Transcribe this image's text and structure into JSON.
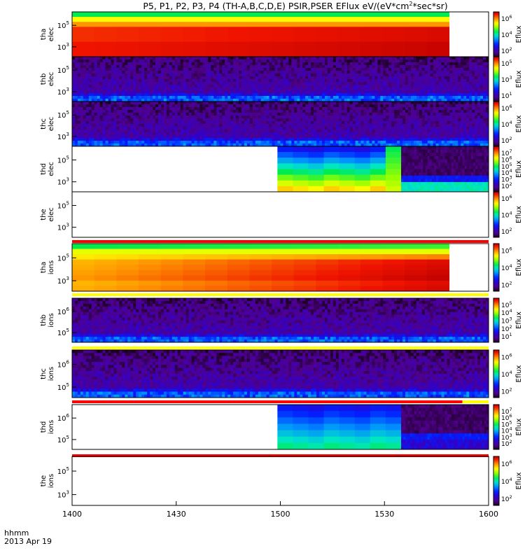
{
  "title": "P5, P1, P2, P3, P4 (TH-A,B,C,D,E) PSIR,PSER EFlux eV/(eV*cm",
  "title_sup": "2",
  "title_tail": "*sec*sr)",
  "xaxis": {
    "ticks": [
      "1400",
      "1430",
      "1500",
      "1530",
      "1600"
    ],
    "corner_label_1": "hhmm",
    "corner_label_2": "2013 Apr 19"
  },
  "colorbar_label": "Eflux",
  "chart_data": [
    {
      "type": "heatmap",
      "panel": "tha elec",
      "ylabel": [
        "tha",
        "elec"
      ],
      "yticks": [
        {
          "base": "10",
          "exp": "5"
        },
        {
          "base": "10",
          "exp": "3"
        }
      ],
      "colorbar_ticks": [
        {
          "base": "10",
          "exp": "6"
        },
        {
          "base": "10",
          "exp": "4"
        },
        {
          "base": "10",
          "exp": "2"
        }
      ],
      "pattern": "hot_columns",
      "coverage": [
        0,
        0.905
      ],
      "bands": [
        0.86,
        0.6,
        0.45,
        0.35,
        0.25
      ]
    },
    {
      "type": "heatmap",
      "panel": "thb elec",
      "ylabel": [
        "thb",
        "elec"
      ],
      "yticks": [
        {
          "base": "10",
          "exp": "5"
        },
        {
          "base": "10",
          "exp": "3"
        }
      ],
      "colorbar_ticks": [
        {
          "base": "10",
          "exp": "5"
        },
        {
          "base": "10",
          "exp": "3"
        },
        {
          "base": "10",
          "exp": "1"
        }
      ],
      "pattern": "noise",
      "coverage": [
        0,
        1
      ],
      "bands": [
        0.18,
        0.34,
        0.46
      ]
    },
    {
      "type": "heatmap",
      "panel": "thc elec",
      "ylabel": [
        "thc",
        "elec"
      ],
      "yticks": [
        {
          "base": "10",
          "exp": "5"
        },
        {
          "base": "10",
          "exp": "3"
        }
      ],
      "colorbar_ticks": [
        {
          "base": "10",
          "exp": "6"
        },
        {
          "base": "10",
          "exp": "4"
        },
        {
          "base": "10",
          "exp": "2"
        }
      ],
      "pattern": "noise",
      "coverage": [
        0,
        1
      ],
      "bands": [
        0.12,
        0.2,
        0.28
      ]
    },
    {
      "type": "heatmap",
      "panel": "thd elec",
      "ylabel": [
        "thd",
        "elec"
      ],
      "yticks": [
        {
          "base": "10",
          "exp": "5"
        },
        {
          "base": "10",
          "exp": "3"
        }
      ],
      "colorbar_ticks": [
        {
          "base": "10",
          "exp": "7"
        },
        {
          "base": "10",
          "exp": "6"
        },
        {
          "base": "10",
          "exp": "5"
        },
        {
          "base": "10",
          "exp": "4"
        },
        {
          "base": "10",
          "exp": "3"
        },
        {
          "base": "10",
          "exp": "2"
        }
      ],
      "pattern": "thd",
      "coverage": [
        0.493,
        1
      ]
    },
    {
      "type": "heatmap",
      "panel": "the elec",
      "ylabel": [
        "the",
        "elec"
      ],
      "yticks": [
        {
          "base": "10",
          "exp": "5"
        },
        {
          "base": "10",
          "exp": "3"
        }
      ],
      "colorbar_ticks": [
        {
          "base": "10",
          "exp": "6"
        },
        {
          "base": "10",
          "exp": "4"
        },
        {
          "base": "10",
          "exp": "2"
        }
      ],
      "pattern": "empty",
      "coverage": [
        0,
        0
      ],
      "status_bar": [
        {
          "from": 0,
          "to": 1,
          "color": "#ff0000"
        }
      ]
    },
    {
      "type": "heatmap",
      "panel": "tha ions",
      "ylabel": [
        "tha",
        "ions"
      ],
      "yticks": [
        {
          "base": "10",
          "exp": "5"
        },
        {
          "base": "10",
          "exp": "3"
        }
      ],
      "colorbar_ticks": [
        {
          "base": "10",
          "exp": "6"
        },
        {
          "base": "10",
          "exp": "4"
        },
        {
          "base": "10",
          "exp": "2"
        }
      ],
      "pattern": "warm_columns",
      "coverage": [
        0,
        0.905
      ],
      "status_bar": [
        {
          "from": 0,
          "to": 1,
          "color": "#ffff00"
        }
      ]
    },
    {
      "type": "heatmap",
      "panel": "thb ions",
      "ylabel": [
        "thb",
        "ions"
      ],
      "yticks": [
        {
          "base": "10",
          "exp": "6"
        },
        {
          "base": "10",
          "exp": "5"
        }
      ],
      "colorbar_ticks": [
        {
          "base": "10",
          "exp": "5"
        },
        {
          "base": "10",
          "exp": "4"
        },
        {
          "base": "10",
          "exp": "3"
        },
        {
          "base": "10",
          "exp": "2"
        },
        {
          "base": "10",
          "exp": "1"
        }
      ],
      "pattern": "noise",
      "coverage": [
        0,
        1
      ],
      "bands": [
        0.1,
        0.25,
        0.45
      ],
      "status_bar": [
        {
          "from": 0,
          "to": 1,
          "color": "#ffff00"
        }
      ]
    },
    {
      "type": "heatmap",
      "panel": "thc ions",
      "ylabel": [
        "thc",
        "ions"
      ],
      "yticks": [
        {
          "base": "10",
          "exp": "6"
        },
        {
          "base": "10",
          "exp": "5"
        }
      ],
      "colorbar_ticks": [
        {
          "base": "10",
          "exp": "6"
        },
        {
          "base": "10",
          "exp": "4"
        },
        {
          "base": "10",
          "exp": "2"
        }
      ],
      "pattern": "noise",
      "coverage": [
        0,
        1
      ],
      "bands": [
        0.12,
        0.2,
        0.28
      ],
      "status_bar": [
        {
          "from": 0,
          "to": 0.937,
          "color": "#ff0000"
        },
        {
          "from": 0.937,
          "to": 1,
          "color": "#ffff00"
        }
      ]
    },
    {
      "type": "heatmap",
      "panel": "thd ions",
      "ylabel": [
        "thd",
        "ions"
      ],
      "yticks": [
        {
          "base": "10",
          "exp": "6"
        },
        {
          "base": "10",
          "exp": "5"
        }
      ],
      "colorbar_ticks": [
        {
          "base": "10",
          "exp": "7"
        },
        {
          "base": "10",
          "exp": "6"
        },
        {
          "base": "10",
          "exp": "5"
        },
        {
          "base": "10",
          "exp": "4"
        },
        {
          "base": "10",
          "exp": "3"
        },
        {
          "base": "10",
          "exp": "2"
        }
      ],
      "pattern": "thd_ions",
      "coverage": [
        0.493,
        1
      ],
      "status_bar": [
        {
          "from": 0,
          "to": 1,
          "color": "#ff0000"
        }
      ]
    },
    {
      "type": "heatmap",
      "panel": "the ions",
      "ylabel": [
        "the",
        "ions"
      ],
      "yticks": [
        {
          "base": "10",
          "exp": "5"
        },
        {
          "base": "10",
          "exp": "3"
        }
      ],
      "colorbar_ticks": [
        {
          "base": "10",
          "exp": "6"
        },
        {
          "base": "10",
          "exp": "4"
        },
        {
          "base": "10",
          "exp": "2"
        }
      ],
      "pattern": "empty",
      "coverage": [
        0,
        0
      ]
    }
  ]
}
